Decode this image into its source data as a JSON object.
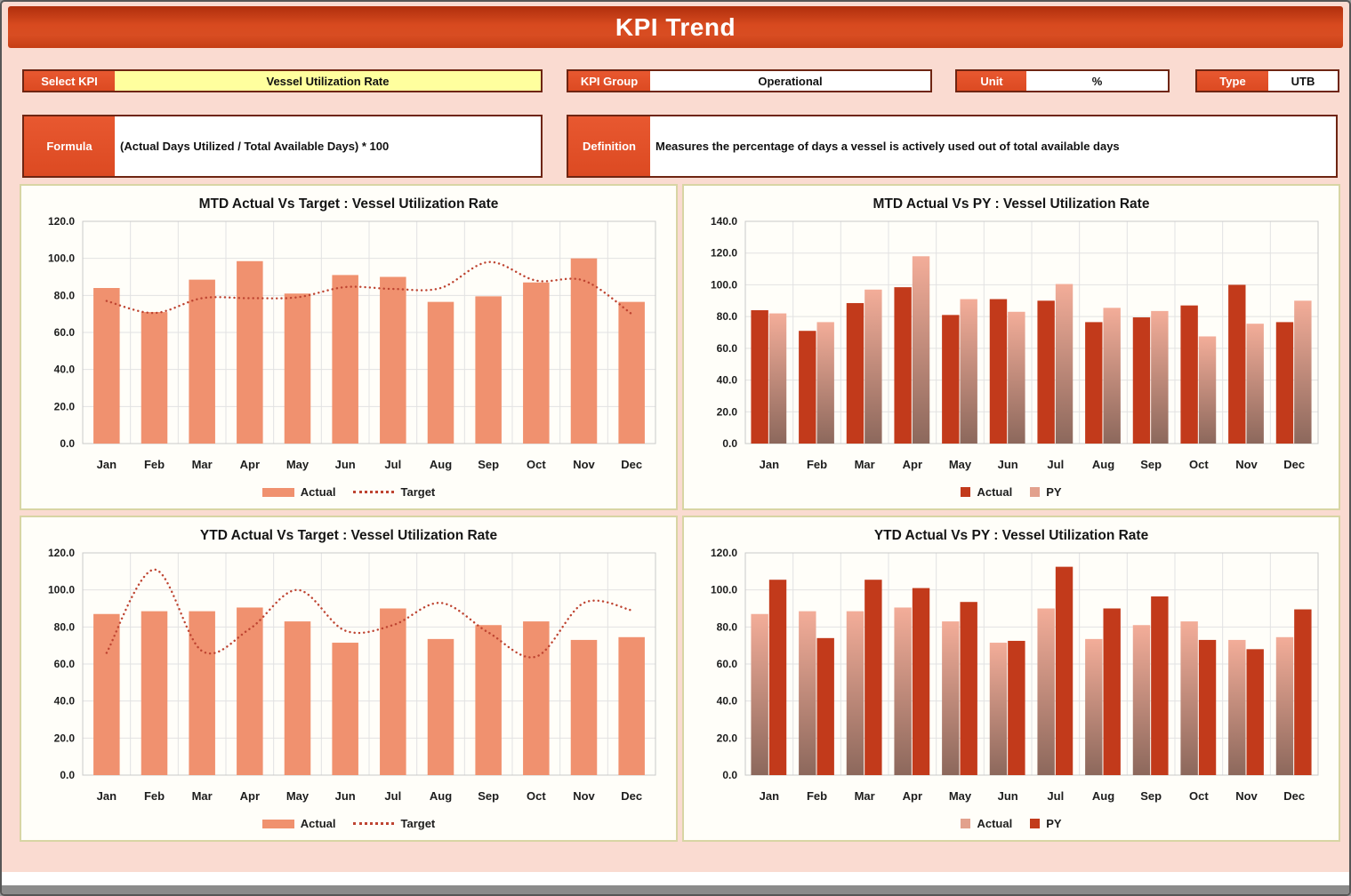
{
  "header": {
    "title": "KPI Trend"
  },
  "controls": {
    "select_kpi": {
      "label": "Select KPI",
      "value": "Vessel Utilization Rate"
    },
    "kpi_group": {
      "label": "KPI Group",
      "value": "Operational"
    },
    "unit": {
      "label": "Unit",
      "value": "%"
    },
    "type": {
      "label": "Type",
      "value": "UTB"
    },
    "formula": {
      "label": "Formula",
      "value": "(Actual Days Utilized / Total Available Days) * 100"
    },
    "definition": {
      "label": "Definition",
      "value": "Measures the percentage of days a vessel is actively used out of total available days"
    }
  },
  "colors": {
    "salmon": "#F0916F",
    "dark_red": "#C23A1B",
    "fade_top": "#F3AD99",
    "fade_bottom": "#8C685C",
    "target_line": "#BE4431",
    "grid": "#E2E2E2",
    "plot_border": "#C9C9C9",
    "legend_pink": "#E2A18D"
  },
  "chart_data": [
    {
      "type": "bar",
      "title": "MTD Actual Vs Target : Vessel Utilization Rate",
      "categories": [
        "Jan",
        "Feb",
        "Mar",
        "Apr",
        "May",
        "Jun",
        "Jul",
        "Aug",
        "Sep",
        "Oct",
        "Nov",
        "Dec"
      ],
      "ylim": [
        0,
        120
      ],
      "ystep": 20,
      "grid": true,
      "legend_position": "bottom",
      "series": [
        {
          "name": "Actual",
          "type": "bar",
          "style": "salmon",
          "values": [
            84,
            71,
            88.5,
            98.5,
            81,
            91,
            90,
            76.5,
            79.5,
            87,
            100,
            76.5
          ]
        },
        {
          "name": "Target",
          "type": "line-dotted",
          "style": "target",
          "values": [
            77,
            70.5,
            78.5,
            78.5,
            79,
            84.5,
            83.5,
            84,
            98,
            88,
            88,
            70
          ]
        }
      ],
      "legend": [
        {
          "label": "Actual",
          "swatch": "bar-salmon"
        },
        {
          "label": "Target",
          "swatch": "dotted-line"
        }
      ]
    },
    {
      "type": "bar",
      "title": "MTD Actual Vs PY : Vessel Utilization Rate",
      "categories": [
        "Jan",
        "Feb",
        "Mar",
        "Apr",
        "May",
        "Jun",
        "Jul",
        "Aug",
        "Sep",
        "Oct",
        "Nov",
        "Dec"
      ],
      "ylim": [
        0,
        140
      ],
      "ystep": 20,
      "grid": true,
      "legend_position": "bottom",
      "series": [
        {
          "name": "Actual",
          "type": "bar",
          "style": "dark",
          "values": [
            84,
            71,
            88.5,
            98.5,
            81,
            91,
            90,
            76.5,
            79.5,
            87,
            100,
            76.5
          ]
        },
        {
          "name": "PY",
          "type": "bar",
          "style": "fade",
          "values": [
            82,
            76.5,
            97,
            118,
            91,
            83,
            100.5,
            85.5,
            83.5,
            67.5,
            75.5,
            90
          ]
        }
      ],
      "legend": [
        {
          "label": "Actual",
          "swatch": "square-dark"
        },
        {
          "label": "PY",
          "swatch": "square-pink"
        }
      ]
    },
    {
      "type": "bar",
      "title": "YTD Actual Vs Target : Vessel Utilization Rate",
      "categories": [
        "Jan",
        "Feb",
        "Mar",
        "Apr",
        "May",
        "Jun",
        "Jul",
        "Aug",
        "Sep",
        "Oct",
        "Nov",
        "Dec"
      ],
      "ylim": [
        0,
        120
      ],
      "ystep": 20,
      "grid": true,
      "legend_position": "bottom",
      "series": [
        {
          "name": "Actual",
          "type": "bar",
          "style": "salmon",
          "values": [
            87,
            88.5,
            88.5,
            90.5,
            83,
            71.5,
            90,
            73.5,
            81,
            83,
            73,
            74.5
          ]
        },
        {
          "name": "Target",
          "type": "line-dotted",
          "style": "target",
          "values": [
            66,
            111,
            67,
            79,
            100,
            78,
            81,
            93,
            77,
            64,
            93,
            89
          ]
        }
      ],
      "legend": [
        {
          "label": "Actual",
          "swatch": "bar-salmon"
        },
        {
          "label": "Target",
          "swatch": "dotted-line"
        }
      ]
    },
    {
      "type": "bar",
      "title": "YTD Actual Vs PY : Vessel Utilization Rate",
      "categories": [
        "Jan",
        "Feb",
        "Mar",
        "Apr",
        "May",
        "Jun",
        "Jul",
        "Aug",
        "Sep",
        "Oct",
        "Nov",
        "Dec"
      ],
      "ylim": [
        0,
        120
      ],
      "ystep": 20,
      "grid": true,
      "legend_position": "bottom",
      "series": [
        {
          "name": "Actual",
          "type": "bar",
          "style": "fade",
          "values": [
            87,
            88.5,
            88.5,
            90.5,
            83,
            71.5,
            90,
            73.5,
            81,
            83,
            73,
            74.5
          ]
        },
        {
          "name": "PY",
          "type": "bar",
          "style": "dark",
          "values": [
            105.5,
            74,
            105.5,
            101,
            93.5,
            72.5,
            112.5,
            90,
            96.5,
            73,
            68,
            89.5
          ]
        }
      ],
      "legend": [
        {
          "label": "Actual",
          "swatch": "square-pink"
        },
        {
          "label": "PY",
          "swatch": "square-dark"
        }
      ]
    }
  ]
}
